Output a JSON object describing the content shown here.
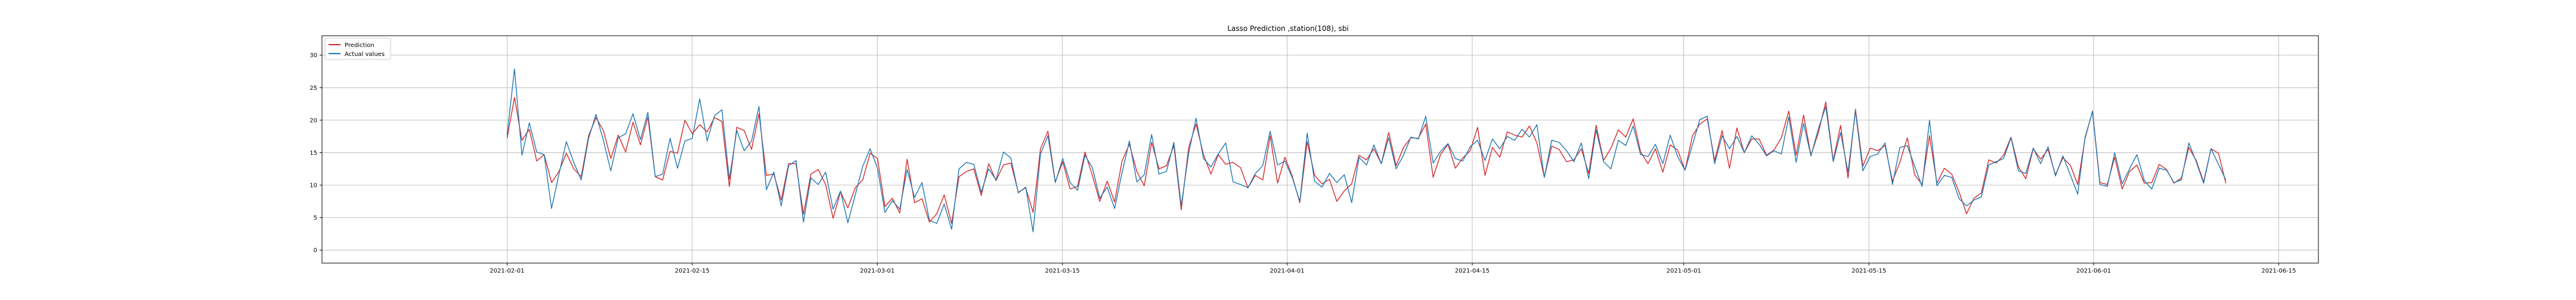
{
  "chart_data": {
    "type": "line",
    "title": "Lasso Prediction ,station(108), sbi",
    "xlabel": "",
    "ylabel": "",
    "x_range": [
      "2021-01-18",
      "2021-06-18"
    ],
    "x_ticks": [
      "2021-02-01",
      "2021-02-15",
      "2021-03-01",
      "2021-03-15",
      "2021-04-01",
      "2021-04-15",
      "2021-05-01",
      "2021-05-15",
      "2021-06-01",
      "2021-06-15"
    ],
    "y_range": [
      -2,
      33
    ],
    "y_ticks": [
      0,
      5,
      10,
      15,
      20,
      25,
      30
    ],
    "grid": true,
    "legend_position": "top-left",
    "x_start": "2021-02-01",
    "x_end": "2021-06-11",
    "series": [
      {
        "name": "Prediction",
        "color": "#d62728",
        "values": [
          17.2,
          23.5,
          16.9,
          18.6,
          13.7,
          14.7,
          10.4,
          12.1,
          14.9,
          12.5,
          11.3,
          17.6,
          20.4,
          18.4,
          14.1,
          17.7,
          15.1,
          19.7,
          16.2,
          20.5,
          11.3,
          10.8,
          15.2,
          14.9,
          20.0,
          17.9,
          19.3,
          18.2,
          20.4,
          19.8,
          9.8,
          18.9,
          18.4,
          15.5,
          21.0,
          11.5,
          11.7,
          7.7,
          13.3,
          13.3,
          5.5,
          11.7,
          12.4,
          10.1,
          4.9,
          9.0,
          6.5,
          9.6,
          10.8,
          14.9,
          14.1,
          6.7,
          8.0,
          5.7,
          14.0,
          7.3,
          7.9,
          4.3,
          5.6,
          8.5,
          4.1,
          11.3,
          12.1,
          12.5,
          8.4,
          13.3,
          10.7,
          13.1,
          13.4,
          8.9,
          9.6,
          5.8,
          15.6,
          18.3,
          10.5,
          13.6,
          9.4,
          9.8,
          15.1,
          11.5,
          7.5,
          10.6,
          7.4,
          13.7,
          16.3,
          12.1,
          9.9,
          16.6,
          12.5,
          13.0,
          16.1,
          6.2,
          15.8,
          19.4,
          14.7,
          11.7,
          14.7,
          13.2,
          13.5,
          12.7,
          9.6,
          11.5,
          10.8,
          17.6,
          10.3,
          14.3,
          11.3,
          7.3,
          16.7,
          11.5,
          10.2,
          10.9,
          7.5,
          9.1,
          10.2,
          14.6,
          13.9,
          15.6,
          13.3,
          18.1,
          13.0,
          15.8,
          17.3,
          17.2,
          19.4,
          11.2,
          14.7,
          16.3,
          12.6,
          14.2,
          15.3,
          18.9,
          11.5,
          15.8,
          14.3,
          18.2,
          17.7,
          17.4,
          19.1,
          16.5,
          11.2,
          16.0,
          15.5,
          13.6,
          13.9,
          15.6,
          11.8,
          19.2,
          13.8,
          15.7,
          18.5,
          17.4,
          20.2,
          15.1,
          13.3,
          15.6,
          12.0,
          16.2,
          15.4,
          12.3,
          17.6,
          19.4,
          20.2,
          13.8,
          18.4,
          12.6,
          18.8,
          15.0,
          17.1,
          17.1,
          14.6,
          15.4,
          17.3,
          21.4,
          14.6,
          20.8,
          14.6,
          18.1,
          22.8,
          13.8,
          19.2,
          11.1,
          21.7,
          12.9,
          15.7,
          15.3,
          16.1,
          10.6,
          13.5,
          17.3,
          11.6,
          10.1,
          17.6,
          10.3,
          12.6,
          11.7,
          8.9,
          5.6,
          8.0,
          8.8,
          13.9,
          13.4,
          14.6,
          17.4,
          12.8,
          11.0,
          15.6,
          14.0,
          15.5,
          11.6,
          14.2,
          13.1,
          10.1,
          17.2,
          21.4,
          10.4,
          10.1,
          14.3,
          9.4,
          12.1,
          13.1,
          10.3,
          10.4,
          13.2,
          12.4,
          10.3,
          11.1,
          15.8,
          13.8,
          10.5,
          15.6,
          14.9,
          10.3
        ]
      },
      {
        "name": "Actual values",
        "color": "#1f77b4",
        "values": [
          17.7,
          27.9,
          14.6,
          19.6,
          15.1,
          14.7,
          6.4,
          11.7,
          16.7,
          13.5,
          10.8,
          17.2,
          20.9,
          16.9,
          12.2,
          17.3,
          17.9,
          21.0,
          17.0,
          21.2,
          11.3,
          11.7,
          17.2,
          12.6,
          16.8,
          17.2,
          23.3,
          16.8,
          20.7,
          21.6,
          10.9,
          18.4,
          15.3,
          16.8,
          22.1,
          9.3,
          12.0,
          6.8,
          13.0,
          13.8,
          4.3,
          11.1,
          10.1,
          12.0,
          6.3,
          9.1,
          4.2,
          8.5,
          12.9,
          15.6,
          12.6,
          5.8,
          7.6,
          6.3,
          12.4,
          8.1,
          10.4,
          4.6,
          4.1,
          7.1,
          3.2,
          12.5,
          13.5,
          13.2,
          8.9,
          12.5,
          10.8,
          15.1,
          14.2,
          8.8,
          9.7,
          2.8,
          14.8,
          17.6,
          10.4,
          14.1,
          10.4,
          9.2,
          14.6,
          12.7,
          8.0,
          9.7,
          6.4,
          11.9,
          16.8,
          10.5,
          11.6,
          17.8,
          11.7,
          12.1,
          16.6,
          6.8,
          14.9,
          20.3,
          14.1,
          12.8,
          14.8,
          16.5,
          10.5,
          10.1,
          9.6,
          11.8,
          13.0,
          18.3,
          13.1,
          13.7,
          11.1,
          7.5,
          18.0,
          10.6,
          9.7,
          11.8,
          10.4,
          11.6,
          7.3,
          14.3,
          13.1,
          16.2,
          13.3,
          17.3,
          12.5,
          14.6,
          17.4,
          17.1,
          20.6,
          13.4,
          15.2,
          16.4,
          14.1,
          13.7,
          15.9,
          16.9,
          13.8,
          17.1,
          15.6,
          17.5,
          16.9,
          18.6,
          17.4,
          19.3,
          11.2,
          16.9,
          16.6,
          15.3,
          13.6,
          16.5,
          11.0,
          18.5,
          13.6,
          12.5,
          16.9,
          16.1,
          19.1,
          14.7,
          14.4,
          16.3,
          13.3,
          17.7,
          14.4,
          12.3,
          16.2,
          20.1,
          20.6,
          13.3,
          17.6,
          15.6,
          17.5,
          15.0,
          17.6,
          16.3,
          14.5,
          15.3,
          14.8,
          20.5,
          13.5,
          19.5,
          14.5,
          18.7,
          22.1,
          13.6,
          18.1,
          12.0,
          21.4,
          12.2,
          14.4,
          14.8,
          16.5,
          10.1,
          15.8,
          16.1,
          12.9,
          9.8,
          20.0,
          9.9,
          11.5,
          11.2,
          7.9,
          6.8,
          7.7,
          8.2,
          13.1,
          13.6,
          14.1,
          17.3,
          12.2,
          11.8,
          15.7,
          13.3,
          15.9,
          11.4,
          14.5,
          11.6,
          8.6,
          17.4,
          21.3,
          10.1,
          9.8,
          15.0,
          10.2,
          12.5,
          14.7,
          10.7,
          9.4,
          12.6,
          12.3,
          10.4,
          10.8,
          16.5,
          13.6,
          10.3,
          15.6,
          13.2,
          10.8
        ]
      }
    ]
  }
}
